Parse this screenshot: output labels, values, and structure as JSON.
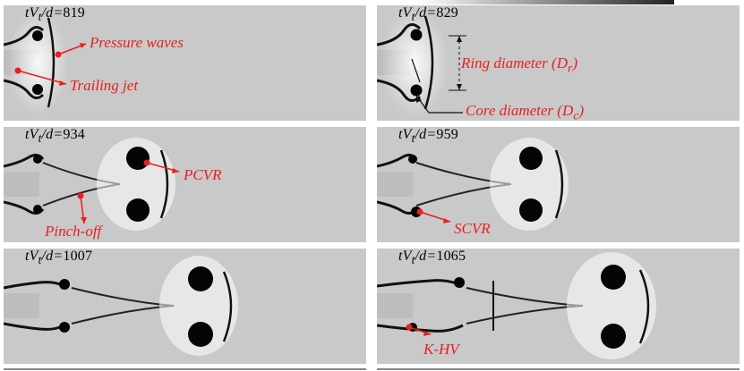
{
  "panels": [
    {
      "label_prefix": "tV",
      "label_sub": "t",
      "label_mid": "/d=",
      "label_value": "819"
    },
    {
      "label_prefix": "tV",
      "label_sub": "t",
      "label_mid": "/d=",
      "label_value": "829"
    },
    {
      "label_prefix": "tV",
      "label_sub": "t",
      "label_mid": "/d=",
      "label_value": "934"
    },
    {
      "label_prefix": "tV",
      "label_sub": "t",
      "label_mid": "/d=",
      "label_value": "959"
    },
    {
      "label_prefix": "tV",
      "label_sub": "t",
      "label_mid": "/d=",
      "label_value": "1007"
    },
    {
      "label_prefix": "tV",
      "label_sub": "t",
      "label_mid": "/d=",
      "label_value": "1065"
    }
  ],
  "annotations": {
    "pressure_waves": "Pressure waves",
    "trailing_jet": "Trailing jet",
    "ring_diameter": "Ring diameter (",
    "ring_diameter_sym": "D",
    "ring_diameter_sub": "r",
    "core_diameter": "Core diameter (",
    "core_diameter_sym": "D",
    "core_diameter_sub": "c",
    "closing_paren": ")",
    "pcvr": "PCVR",
    "pinch_off": "Pinch-off",
    "scvr": "SCVR",
    "khv": "K-HV"
  },
  "colors": {
    "annotation": "#e8201e",
    "field_background": "#c9c9c9",
    "vortex_core": "#050505"
  }
}
